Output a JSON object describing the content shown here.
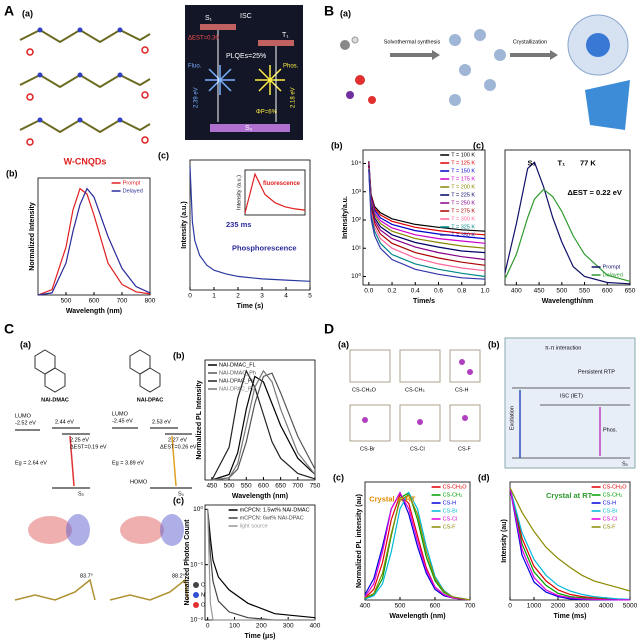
{
  "figure": {
    "letters": [
      "A",
      "B",
      "C",
      "D"
    ]
  },
  "panels": {
    "A": {
      "sub": "(a)",
      "caption": "W-CNQDs",
      "diagram": {
        "s1": "S₁",
        "isc": "ISC",
        "t1": "T₁",
        "dest": "ΔEST=0.30",
        "plqe": "PLQEs=25%",
        "fluo": "Fluo.",
        "phos": "Phos.",
        "e1": "2.39 eV",
        "e2": "2.18 eV",
        "phi": "ΦP=6%",
        "s0": "S₀"
      }
    },
    "B": {
      "sub": "(a)",
      "step1": "Solvothermal synthesis",
      "step2": "Crystallization"
    },
    "C": {
      "sub": "(a)",
      "mol1": "NAI-DMAC",
      "mol2": "NAI-DPAC",
      "left": {
        "lumo": "LUMO",
        "lumo_e": "-2.52 eV",
        "s1": "2.44 eV",
        "t1": "2.25 eV",
        "dest": "ΔEST=0.19 eV",
        "eg": "Eg = 2.64 eV",
        "s0": "S₀"
      },
      "right": {
        "lumo": "LUMO",
        "lumo_e": "-2.45 eV",
        "s1": "2.53 eV",
        "t1": "2.27 eV",
        "dest": "ΔEST=0.26 eV",
        "eg": "Eg = 3.89 eV",
        "homo": "HOMO",
        "s0": "S₀"
      },
      "angle1": "83.7°",
      "angle2": "88.2°",
      "atoms": [
        "C",
        "N",
        "O"
      ]
    },
    "D": {
      "sub": "(a)",
      "crystals": [
        "CS-CH₃O",
        "CS-CH₃",
        "CS-H",
        "CS-Br",
        "CS-Cl",
        "CS-F"
      ],
      "diagram": {
        "sub": "(b)",
        "pi": "π-π interaction",
        "rtp": "Persistent RTP",
        "isc": "ISC (IET)",
        "exc": "Excitation",
        "phos": "Phos.",
        "s0": "S₀"
      }
    }
  },
  "chart_data": [
    {
      "type": "line",
      "label": "(b)",
      "xlabel": "Wavelength (nm)",
      "ylabel": "Normalized Intensity",
      "x": [
        400,
        450,
        500,
        525,
        550,
        575,
        600,
        650,
        700,
        750,
        800
      ],
      "xlim": [
        400,
        800
      ],
      "ylim": [
        0,
        1.1
      ],
      "xticks": [
        500,
        600,
        700,
        800
      ],
      "legend": "upper right",
      "series": [
        {
          "name": "Prompt",
          "color": "#e02020",
          "values": [
            0,
            0.05,
            0.45,
            0.8,
            1.0,
            0.95,
            0.75,
            0.3,
            0.1,
            0.03,
            0.01
          ]
        },
        {
          "name": "Delayed",
          "color": "#2a2a9a",
          "values": [
            0,
            0.02,
            0.3,
            0.6,
            0.85,
            1.0,
            0.92,
            0.55,
            0.25,
            0.08,
            0.02
          ]
        }
      ]
    },
    {
      "type": "line",
      "label": "(c)",
      "xlabel": "Time (s)",
      "ylabel": "Intensity (a.u.)",
      "x": [
        0,
        0.1,
        0.2,
        0.4,
        0.7,
        1,
        1.5,
        2,
        3,
        4,
        5
      ],
      "xlim": [
        0,
        5
      ],
      "ylim": [
        0,
        1.05
      ],
      "xticks": [
        0,
        1,
        2,
        3,
        4,
        5
      ],
      "annotations": [
        {
          "text": "235 ms",
          "color": "#2a2a9a"
        },
        {
          "text": "Phosphorescence",
          "color": "#2a2a9a"
        }
      ],
      "series": [
        {
          "color": "#2a3aa0",
          "values": [
            1,
            0.55,
            0.4,
            0.28,
            0.2,
            0.16,
            0.13,
            0.11,
            0.09,
            0.08,
            0.07
          ]
        }
      ]
    },
    {
      "type": "line",
      "ylabel": "Intensity (a.u.)",
      "x": [
        0,
        1,
        2,
        3,
        4,
        5,
        6
      ],
      "xlim": [
        0,
        6
      ],
      "ylim": [
        0,
        1.1
      ],
      "annotations": [
        {
          "text": "fluorescence",
          "color": "#e02020"
        }
      ],
      "series": [
        {
          "color": "#e02020",
          "values": [
            0.05,
            1,
            0.5,
            0.3,
            0.2,
            0.15,
            0.12
          ]
        }
      ]
    },
    {
      "type": "line",
      "label": "(b)",
      "xlabel": "Time/s",
      "ylabel": "Intensity/a.u.",
      "yscale": "log",
      "x": [
        0,
        0.02,
        0.05,
        0.1,
        0.2,
        0.4,
        0.6,
        0.8,
        1.0
      ],
      "xlim": [
        -0.05,
        1.0
      ],
      "ylim": [
        0.5,
        30000
      ],
      "xticks": [
        {
          "value": 0,
          "label": "0.0"
        },
        0.2,
        0.4,
        0.6,
        0.8,
        {
          "value": 1,
          "label": "1.0"
        }
      ],
      "yticks": [
        {
          "value": 1,
          "label": "10⁰"
        },
        {
          "value": 10,
          "label": "10¹"
        },
        {
          "value": 100,
          "label": "10²"
        },
        {
          "value": 1000,
          "label": "10³"
        },
        {
          "value": 10000,
          "label": "10⁴"
        }
      ],
      "legend": "upper right",
      "series": [
        {
          "name": "T = 100 K",
          "color": "#000000",
          "values": [
            12000,
            800,
            300,
            180,
            110,
            70,
            55,
            45,
            40
          ]
        },
        {
          "name": "T = 125 K",
          "color": "#e00000",
          "values": [
            11000,
            700,
            260,
            150,
            90,
            55,
            42,
            34,
            30
          ]
        },
        {
          "name": "T = 150 K",
          "color": "#0000cc",
          "values": [
            10000,
            600,
            220,
            120,
            70,
            42,
            32,
            26,
            22
          ]
        },
        {
          "name": "T = 175 K",
          "color": "#cc00cc",
          "values": [
            9500,
            520,
            180,
            95,
            52,
            30,
            22,
            18,
            15
          ]
        },
        {
          "name": "T = 200 K",
          "color": "#888800",
          "values": [
            9000,
            450,
            150,
            75,
            40,
            22,
            16,
            12,
            10
          ]
        },
        {
          "name": "T = 225 K",
          "color": "#000066",
          "values": [
            8500,
            380,
            120,
            58,
            30,
            16,
            11,
            8,
            7
          ]
        },
        {
          "name": "T = 250 K",
          "color": "#880088",
          "values": [
            8000,
            320,
            95,
            44,
            22,
            11,
            7,
            5,
            4
          ]
        },
        {
          "name": "T = 275 K",
          "color": "#aa0000",
          "values": [
            7500,
            260,
            75,
            32,
            15,
            7,
            4.5,
            3.2,
            2.5
          ]
        },
        {
          "name": "T = 300 K",
          "color": "#ff6699",
          "values": [
            7000,
            200,
            55,
            22,
            10,
            4.5,
            2.8,
            2,
            1.6
          ]
        },
        {
          "name": "T = 325 K",
          "color": "#008888",
          "values": [
            6500,
            150,
            40,
            15,
            6,
            2.8,
            1.8,
            1.3,
            1
          ]
        },
        {
          "name": "T = 350 K",
          "color": "#3333aa",
          "values": [
            6000,
            110,
            28,
            10,
            4,
            1.8,
            1.2,
            0.9,
            0.8
          ]
        }
      ]
    },
    {
      "type": "line",
      "label": "(c)",
      "xlabel": "Wavelength/nm",
      "x": [
        375,
        400,
        425,
        440,
        460,
        480,
        500,
        525,
        550,
        600,
        650
      ],
      "xlim": [
        375,
        650
      ],
      "ylim": [
        0,
        1.1
      ],
      "xticks": [
        400,
        450,
        500,
        550,
        600,
        650
      ],
      "legend": "lower right",
      "annotations": [
        {
          "text": "S₁",
          "color": "#000000"
        },
        {
          "text": "T₁",
          "color": "#000000"
        },
        {
          "text": "77 K",
          "color": "#000000"
        },
        {
          "text": "ΔEST = 0.22 eV",
          "color": "#000000"
        }
      ],
      "series": [
        {
          "name": "Prompt",
          "color": "#10106a",
          "values": [
            0.1,
            0.5,
            0.95,
            1,
            0.8,
            0.55,
            0.35,
            0.15,
            0.07,
            0.02,
            0.01
          ]
        },
        {
          "name": "Delayed",
          "color": "#2e9a2e",
          "values": [
            0.05,
            0.25,
            0.55,
            0.7,
            0.78,
            0.72,
            0.6,
            0.4,
            0.25,
            0.08,
            0.03
          ]
        }
      ]
    },
    {
      "type": "line",
      "label": "(b)",
      "xlabel": "Wavelength (nm)",
      "ylabel": "Normalized PL Intensity",
      "x": [
        450,
        500,
        525,
        550,
        575,
        600,
        625,
        650,
        700,
        750
      ],
      "xlim": [
        430,
        750
      ],
      "ylim": [
        0,
        1.1
      ],
      "xticks": [
        450,
        500,
        550,
        600,
        650,
        700,
        750
      ],
      "legend": "upper left",
      "series": [
        {
          "name": "NAI-DMAC_FL",
          "color": "#000000",
          "values": [
            0,
            0.05,
            0.25,
            0.65,
            0.95,
            0.9,
            0.7,
            0.5,
            0.2,
            0.05
          ]
        },
        {
          "name": "NAI-DMAC_Ph",
          "color": "#555555",
          "values": [
            0,
            0.02,
            0.1,
            0.35,
            0.7,
            0.95,
            0.98,
            0.8,
            0.4,
            0.1
          ]
        },
        {
          "name": "NAI-DPAC_FL",
          "color": "#222222",
          "values": [
            0,
            0.3,
            0.75,
            1,
            0.85,
            0.6,
            0.35,
            0.2,
            0.06,
            0.01
          ]
        },
        {
          "name": "NAI-DPAC_Ph",
          "color": "#777777",
          "values": [
            0,
            0.02,
            0.15,
            0.5,
            0.85,
            1,
            0.9,
            0.65,
            0.25,
            0.05
          ]
        }
      ]
    },
    {
      "type": "line",
      "label": "(c)",
      "xlabel": "Time (μs)",
      "ylabel": "Normalized Photon Count",
      "yscale": "log",
      "x": [
        0,
        10,
        20,
        40,
        80,
        150,
        250,
        400
      ],
      "xlim": [
        -10,
        400
      ],
      "ylim": [
        0.01,
        1.2
      ],
      "xticks": [
        0,
        100,
        200,
        300,
        400
      ],
      "yticks": [
        {
          "value": 0.01,
          "label": "10⁻²"
        },
        {
          "value": 0.1,
          "label": "10⁻¹"
        },
        {
          "value": 1,
          "label": "10⁰"
        }
      ],
      "legend": "upper right",
      "series": [
        {
          "name": "mCPCN: 1.5wt% NAI-DMAC",
          "color": "#000000",
          "values": [
            1,
            0.3,
            0.12,
            0.06,
            0.035,
            0.02,
            0.013,
            0.011
          ]
        },
        {
          "name": "mCPCN: 6wt% NAI-DPAC",
          "color": "#444444",
          "values": [
            1,
            0.15,
            0.05,
            0.022,
            0.014,
            0.011,
            0.01,
            0.01
          ]
        },
        {
          "name": "light source",
          "color": "#999999",
          "values": [
            1,
            0.02,
            0.01,
            0.01,
            0.01,
            0.01,
            0.01,
            0.01
          ]
        }
      ]
    },
    {
      "type": "line",
      "label": "(c)",
      "xlabel": "Wavelength (nm)",
      "ylabel": "Normalized PL intensity (au)",
      "x": [
        400,
        425,
        450,
        475,
        500,
        525,
        550,
        575,
        600,
        625,
        650,
        700
      ],
      "xlim": [
        400,
        700
      ],
      "ylim": [
        0,
        1.1
      ],
      "xticks": [
        400,
        500,
        600,
        700
      ],
      "legend": "upper right",
      "annotations": [
        {
          "text": "Crystal at RT",
          "color": "#e08a00"
        }
      ],
      "series": [
        {
          "name": "CS-CH₃O",
          "color": "#e00000",
          "values": [
            0.02,
            0.1,
            0.35,
            0.75,
            0.98,
            0.9,
            0.6,
            0.3,
            0.12,
            0.05,
            0.02,
            0
          ]
        },
        {
          "name": "CS-CH₃",
          "color": "#00a000",
          "values": [
            0.01,
            0.05,
            0.2,
            0.6,
            0.95,
            1,
            0.75,
            0.4,
            0.18,
            0.07,
            0.03,
            0
          ]
        },
        {
          "name": "CS-H",
          "color": "#0000dd",
          "values": [
            0.05,
            0.2,
            0.5,
            0.85,
            1,
            0.8,
            0.5,
            0.25,
            0.1,
            0.04,
            0.02,
            0
          ]
        },
        {
          "name": "CS-Br",
          "color": "#00b8d8",
          "values": [
            0.01,
            0.04,
            0.15,
            0.45,
            0.85,
            1,
            0.85,
            0.5,
            0.22,
            0.09,
            0.03,
            0
          ]
        },
        {
          "name": "CS-Cl",
          "color": "#dd00dd",
          "values": [
            0.03,
            0.15,
            0.45,
            0.85,
            1,
            0.85,
            0.55,
            0.28,
            0.12,
            0.05,
            0.02,
            0
          ]
        },
        {
          "name": "CS-F",
          "color": "#8a8a00",
          "values": [
            0.02,
            0.06,
            0.25,
            0.62,
            0.93,
            0.98,
            0.8,
            0.45,
            0.2,
            0.08,
            0.03,
            0
          ]
        }
      ]
    },
    {
      "type": "line",
      "label": "(d)",
      "xlabel": "Time (ms)",
      "ylabel": "Intensity (au)",
      "x": [
        0,
        500,
        1000,
        1500,
        2000,
        2500,
        3000,
        3500,
        4000,
        4500,
        5000
      ],
      "xlim": [
        0,
        5000
      ],
      "ylim": [
        0,
        1.05
      ],
      "xticks": [
        0,
        1000,
        2000,
        3000,
        4000,
        5000
      ],
      "legend": "upper right",
      "annotations": [
        {
          "text": "Crystal at RT",
          "color": "#2e9a2e"
        }
      ],
      "series": [
        {
          "name": "CS-CH₃O",
          "color": "#e00000",
          "values": [
            1,
            0.55,
            0.3,
            0.17,
            0.09,
            0.05,
            0.03,
            0.02,
            0.01,
            0.005,
            0.003
          ]
        },
        {
          "name": "CS-CH₃",
          "color": "#00a000",
          "values": [
            1,
            0.5,
            0.25,
            0.13,
            0.06,
            0.03,
            0.02,
            0.01,
            0.005,
            0.003,
            0.002
          ]
        },
        {
          "name": "CS-H",
          "color": "#0000dd",
          "values": [
            1,
            0.4,
            0.16,
            0.07,
            0.03,
            0.01,
            0.005,
            0.003,
            0.002,
            0.001,
            0.001
          ]
        },
        {
          "name": "CS-Br",
          "color": "#00b8d8",
          "values": [
            1,
            0.6,
            0.36,
            0.22,
            0.13,
            0.08,
            0.05,
            0.03,
            0.02,
            0.01,
            0.006
          ]
        },
        {
          "name": "CS-Cl",
          "color": "#dd00dd",
          "values": [
            1,
            0.45,
            0.2,
            0.09,
            0.04,
            0.02,
            0.01,
            0.005,
            0.003,
            0.002,
            0.001
          ]
        },
        {
          "name": "CS-F",
          "color": "#8a8a00",
          "values": [
            1,
            0.78,
            0.61,
            0.47,
            0.37,
            0.29,
            0.22,
            0.17,
            0.14,
            0.11,
            0.08
          ]
        }
      ]
    }
  ]
}
